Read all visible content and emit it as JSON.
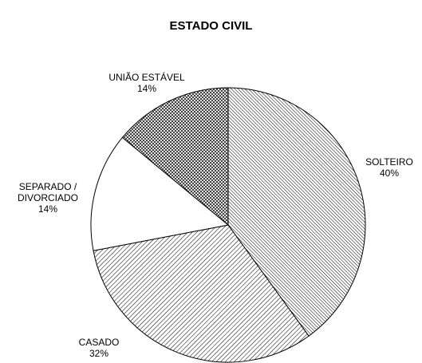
{
  "chart_data": {
    "type": "pie",
    "title": "ESTADO CIVIL",
    "categories": [
      "SOLTEIRO",
      "CASADO",
      "SEPARADO / DIVORCIADO",
      "UNIÃO ESTÁVEL"
    ],
    "values": [
      40,
      32,
      14,
      14
    ],
    "value_labels": [
      "40%",
      "32%",
      "14%",
      "14%"
    ]
  }
}
